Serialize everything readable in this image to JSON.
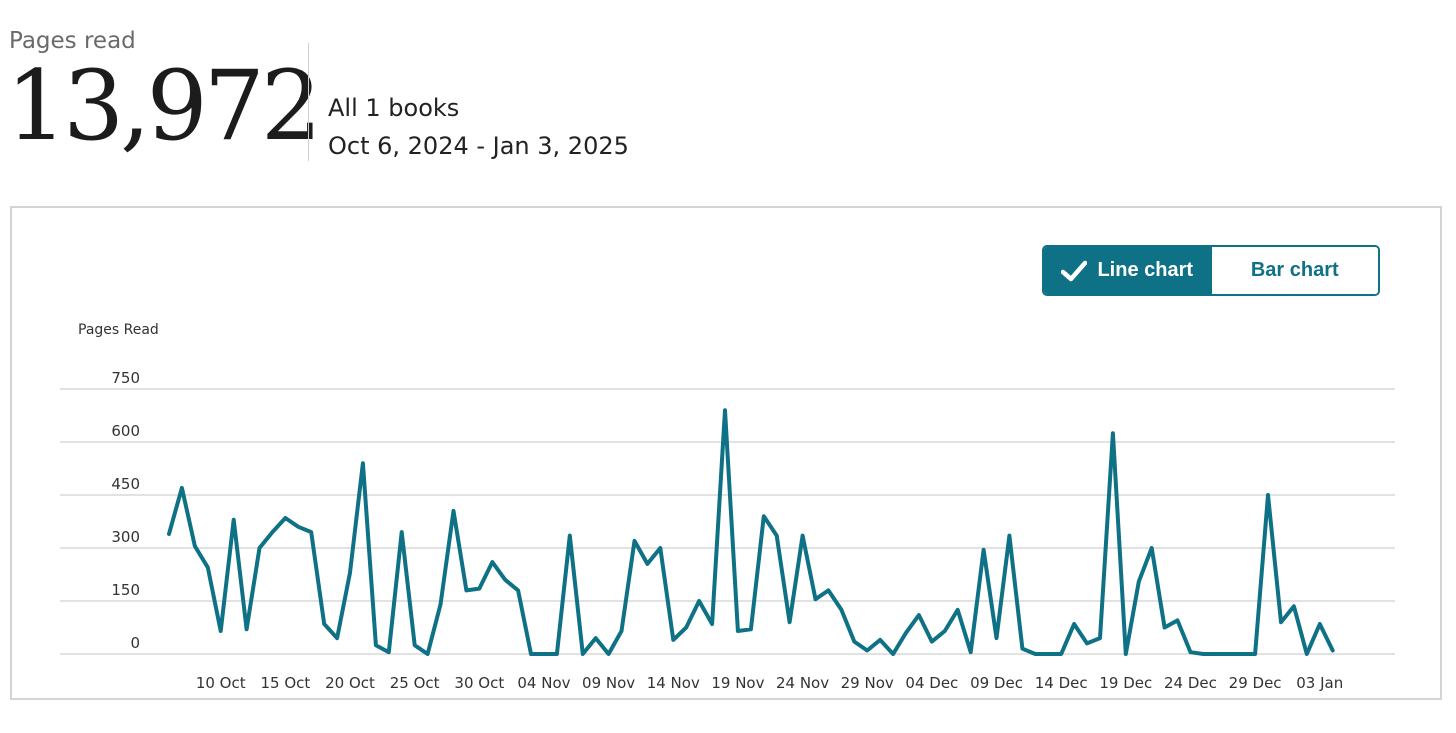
{
  "header": {
    "pages_label": "Pages read",
    "total_pages": "13,972",
    "books_summary": "All 1 books",
    "date_range": "Oct 6, 2024 - Jan 3, 2025"
  },
  "toggle": {
    "line_label": "Line chart",
    "bar_label": "Bar chart",
    "selected": "line"
  },
  "colors": {
    "accent": "#0f7186",
    "gridline": "#d0d0d0"
  },
  "chart_data": {
    "type": "line",
    "ylabel": "Pages Read",
    "ylim": [
      0,
      750
    ],
    "yticks": [
      0,
      150,
      300,
      450,
      600,
      750
    ],
    "grid": true,
    "x_tick_labels": [
      "10 Oct",
      "15 Oct",
      "20 Oct",
      "25 Oct",
      "30 Oct",
      "04 Nov",
      "09 Nov",
      "14 Nov",
      "19 Nov",
      "24 Nov",
      "29 Nov",
      "04 Dec",
      "09 Dec",
      "14 Dec",
      "19 Dec",
      "24 Dec",
      "29 Dec",
      "03 Jan"
    ],
    "x_start": "2024-10-06",
    "x_end": "2025-01-03",
    "series": [
      {
        "values": [
          340,
          470,
          305,
          245,
          65,
          380,
          70,
          300,
          345,
          385,
          360,
          345,
          85,
          45,
          230,
          540,
          25,
          5,
          345,
          25,
          0,
          140,
          405,
          180,
          185,
          260,
          210,
          180,
          0,
          0,
          0,
          335,
          0,
          45,
          0,
          65,
          320,
          255,
          300,
          40,
          75,
          150,
          85,
          690,
          65,
          70,
          390,
          335,
          90,
          335,
          155,
          180,
          125,
          35,
          10,
          40,
          0,
          60,
          110,
          35,
          65,
          125,
          5,
          295,
          45,
          335,
          15,
          0,
          0,
          0,
          85,
          30,
          45,
          625,
          0,
          205,
          300,
          75,
          95,
          5,
          0,
          0,
          0,
          0,
          0,
          450,
          90,
          135,
          0,
          85,
          10
        ]
      }
    ]
  }
}
